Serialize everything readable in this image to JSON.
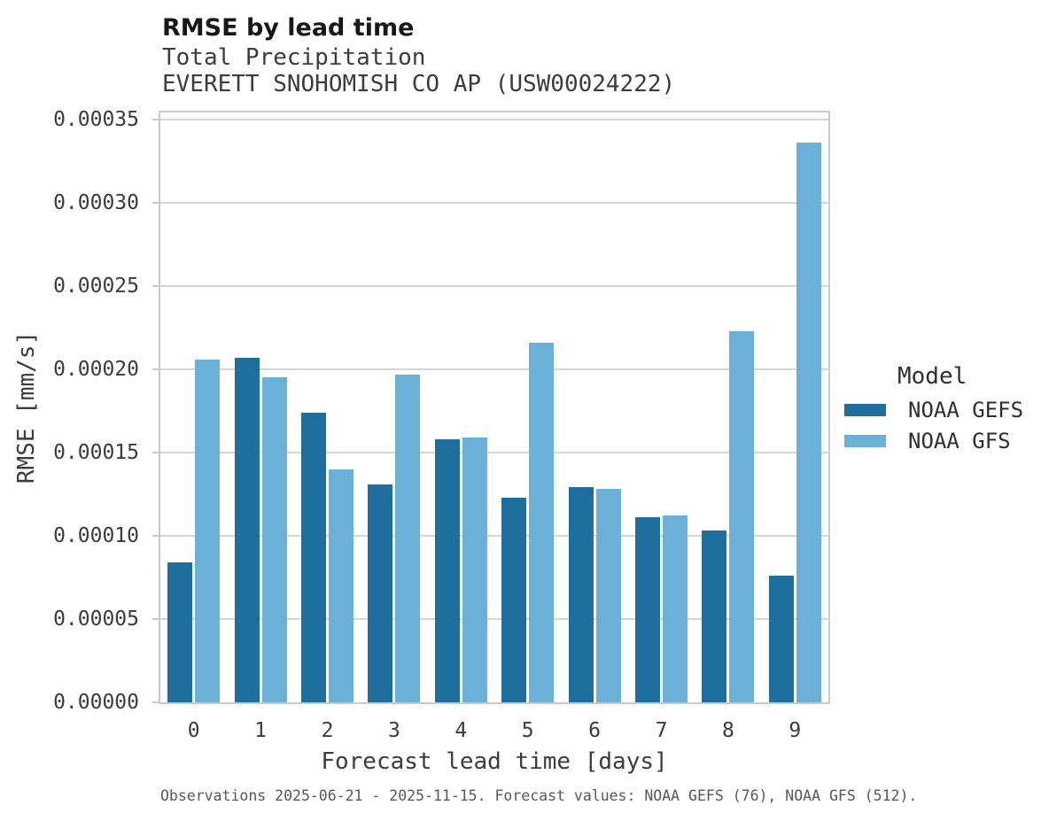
{
  "header": {
    "title": "RMSE by lead time",
    "subtitle": "Total Precipitation",
    "station": "EVERETT SNOHOMISH CO AP (USW00024222)"
  },
  "legend": {
    "title": "Model",
    "position": "right"
  },
  "caption": "Observations 2025-06-21 - 2025-11-15. Forecast values: NOAA GEFS (76), NOAA GFS (512).",
  "chart_data": {
    "type": "bar",
    "title": "RMSE by lead time",
    "subtitle": "Total Precipitation",
    "station": "EVERETT SNOHOMISH CO AP (USW00024222)",
    "xlabel": "Forecast lead time [days]",
    "ylabel": "RMSE [mm/s]",
    "categories": [
      "0",
      "1",
      "2",
      "3",
      "4",
      "5",
      "6",
      "7",
      "8",
      "9"
    ],
    "series": [
      {
        "name": "NOAA GEFS",
        "color": "#1f6f9e",
        "values": [
          8.4e-05,
          0.000207,
          0.000174,
          0.000131,
          0.000158,
          0.000123,
          0.000129,
          0.000111,
          0.000103,
          7.6e-05
        ]
      },
      {
        "name": "NOAA GFS",
        "color": "#6bb0d7",
        "values": [
          0.000206,
          0.000195,
          0.00014,
          0.000197,
          0.000159,
          0.000216,
          0.000128,
          0.000112,
          0.000223,
          0.000336
        ]
      }
    ],
    "ylim": [
      0,
      0.00035
    ],
    "ytick_step": 5e-05,
    "ytick_labels": [
      "0.00000",
      "0.00005",
      "0.00010",
      "0.00015",
      "0.00020",
      "0.00025",
      "0.00030",
      "0.00035"
    ],
    "grid": true,
    "legend_position": "right",
    "background": "#ffffff",
    "gridline_color": "#d6d6d6",
    "spine_color": "#c9c9c9",
    "text_color": "#3c3c3c",
    "caption_color": "#585858"
  }
}
